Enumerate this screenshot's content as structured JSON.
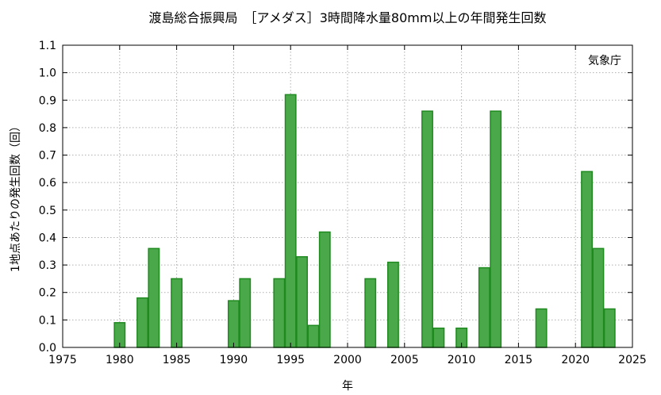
{
  "chart_data": {
    "type": "bar",
    "title": "渡島総合振興局　［アメダス］3時間降水量80mm以上の年間発生回数",
    "xlabel": "年",
    "ylabel": "1地点あたりの発生回数（回）",
    "source": "気象庁",
    "xlim": [
      1975,
      2025
    ],
    "ylim": [
      0.0,
      1.1
    ],
    "x_ticks": [
      "1975",
      "1980",
      "1985",
      "1990",
      "1995",
      "2000",
      "2005",
      "2010",
      "2015",
      "2020",
      "2025"
    ],
    "y_ticks": [
      "0.0",
      "0.1",
      "0.2",
      "0.3",
      "0.4",
      "0.5",
      "0.6",
      "0.7",
      "0.8",
      "0.9",
      "1.0",
      "1.1"
    ],
    "grid": true,
    "bar_color": "#4aa84a",
    "bar_edge_color": "#1f8a1f",
    "x": [
      1980,
      1982,
      1983,
      1985,
      1990,
      1991,
      1994,
      1995,
      1996,
      1997,
      1998,
      2002,
      2004,
      2007,
      2008,
      2010,
      2012,
      2013,
      2017,
      2021,
      2022,
      2023
    ],
    "values": [
      0.09,
      0.18,
      0.36,
      0.25,
      0.17,
      0.25,
      0.25,
      0.92,
      0.33,
      0.08,
      0.42,
      0.25,
      0.31,
      0.86,
      0.07,
      0.07,
      0.29,
      0.86,
      0.14,
      0.64,
      0.36,
      0.14
    ]
  }
}
